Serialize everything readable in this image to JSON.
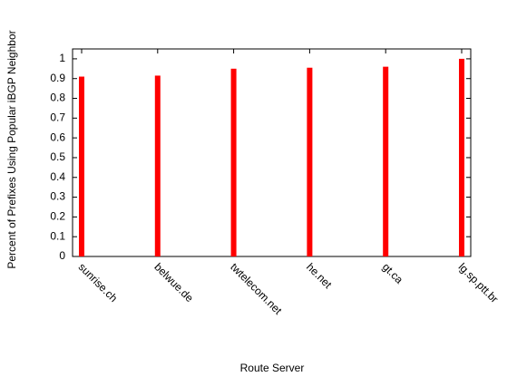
{
  "chart_data": {
    "type": "bar",
    "xlabel": "Route Server",
    "ylabel": "Percent of Prefixes Using Popular iBGP Neighbor",
    "categories": [
      "sunrise.ch",
      "belwue.de",
      "twtelecom.net",
      "he.net",
      "gt.ca",
      "lg.sp.ptt.br"
    ],
    "values": [
      0.91,
      0.915,
      0.95,
      0.955,
      0.96,
      1.0
    ],
    "color": "#ff0000",
    "ylim": [
      0,
      1.05
    ],
    "yticks": [
      0,
      0.1,
      0.2,
      0.3,
      0.4,
      0.5,
      0.6,
      0.7,
      0.8,
      0.9,
      1
    ]
  }
}
